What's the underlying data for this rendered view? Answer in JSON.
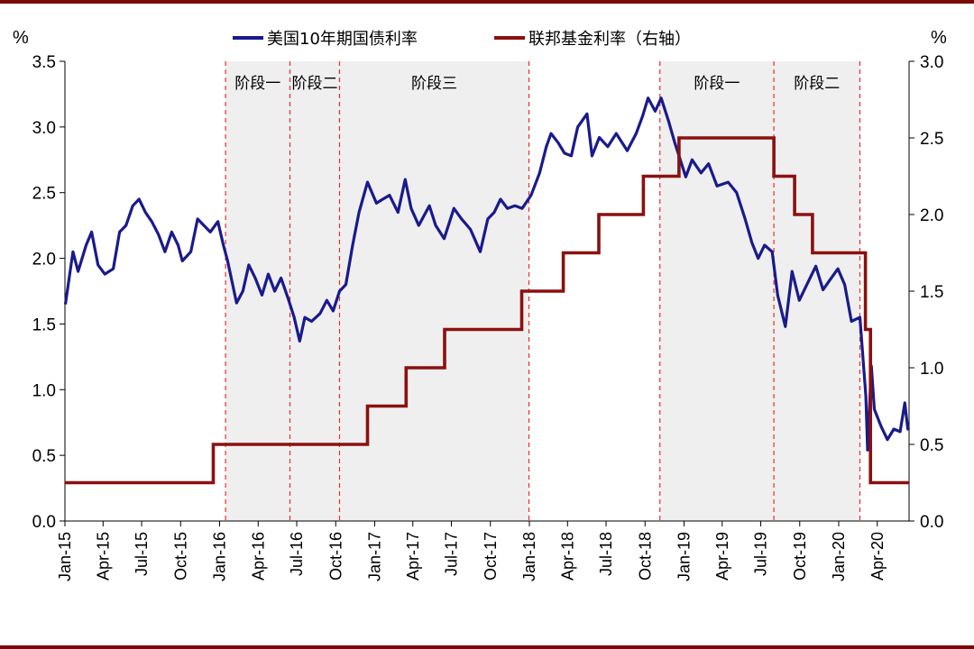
{
  "chart_data": {
    "type": "line",
    "left_axis": {
      "unit": "%",
      "ylim": [
        0,
        3.5
      ],
      "ticks": [
        "0.0",
        "0.5",
        "1.0",
        "1.5",
        "2.0",
        "2.5",
        "3.0",
        "3.5"
      ]
    },
    "right_axis": {
      "unit": "%",
      "ylim": [
        0,
        3.0
      ],
      "ticks": [
        "0.0",
        "0.5",
        "1.0",
        "1.5",
        "2.0",
        "2.5",
        "3.0"
      ]
    },
    "x_axis": {
      "range": [
        "2015-01-01",
        "2020-06-15"
      ],
      "ticks": [
        {
          "date": "2015-01-01",
          "label": "Jan-15"
        },
        {
          "date": "2015-04-01",
          "label": "Apr-15"
        },
        {
          "date": "2015-07-01",
          "label": "Jul-15"
        },
        {
          "date": "2015-10-01",
          "label": "Oct-15"
        },
        {
          "date": "2016-01-01",
          "label": "Jan-16"
        },
        {
          "date": "2016-04-01",
          "label": "Apr-16"
        },
        {
          "date": "2016-07-01",
          "label": "Jul-16"
        },
        {
          "date": "2016-10-01",
          "label": "Oct-16"
        },
        {
          "date": "2017-01-01",
          "label": "Jan-17"
        },
        {
          "date": "2017-04-01",
          "label": "Apr-17"
        },
        {
          "date": "2017-07-01",
          "label": "Jul-17"
        },
        {
          "date": "2017-10-01",
          "label": "Oct-17"
        },
        {
          "date": "2018-01-01",
          "label": "Jan-18"
        },
        {
          "date": "2018-04-01",
          "label": "Apr-18"
        },
        {
          "date": "2018-07-01",
          "label": "Jul-18"
        },
        {
          "date": "2018-10-01",
          "label": "Oct-18"
        },
        {
          "date": "2019-01-01",
          "label": "Jan-19"
        },
        {
          "date": "2019-04-01",
          "label": "Apr-19"
        },
        {
          "date": "2019-07-01",
          "label": "Jul-19"
        },
        {
          "date": "2019-10-01",
          "label": "Oct-19"
        },
        {
          "date": "2020-01-01",
          "label": "Jan-20"
        },
        {
          "date": "2020-04-01",
          "label": "Apr-20"
        }
      ]
    },
    "legend_placement": "top",
    "grid": false,
    "phases": [
      {
        "start": "2016-01-15",
        "end": "2016-06-15",
        "label": "阶段一"
      },
      {
        "start": "2016-06-15",
        "end": "2016-10-10",
        "label": "阶段二"
      },
      {
        "start": "2016-10-10",
        "end": "2017-12-31",
        "label": "阶段三"
      },
      {
        "start": "2018-11-05",
        "end": "2019-08-01",
        "label": "阶段一"
      },
      {
        "start": "2019-08-01",
        "end": "2020-02-20",
        "label": "阶段二"
      }
    ],
    "series": [
      {
        "name": "美国10年期国债利率",
        "axis": "left",
        "color": "#1a1a8c",
        "points": [
          [
            "2015-01-02",
            1.65
          ],
          [
            "2015-01-20",
            2.05
          ],
          [
            "2015-02-01",
            1.9
          ],
          [
            "2015-02-20",
            2.1
          ],
          [
            "2015-03-05",
            2.2
          ],
          [
            "2015-03-20",
            1.95
          ],
          [
            "2015-04-05",
            1.88
          ],
          [
            "2015-04-25",
            1.92
          ],
          [
            "2015-05-10",
            2.2
          ],
          [
            "2015-05-25",
            2.25
          ],
          [
            "2015-06-10",
            2.4
          ],
          [
            "2015-06-25",
            2.45
          ],
          [
            "2015-07-10",
            2.35
          ],
          [
            "2015-07-25",
            2.28
          ],
          [
            "2015-08-10",
            2.18
          ],
          [
            "2015-08-25",
            2.05
          ],
          [
            "2015-09-10",
            2.2
          ],
          [
            "2015-09-25",
            2.1
          ],
          [
            "2015-10-05",
            1.98
          ],
          [
            "2015-10-25",
            2.05
          ],
          [
            "2015-11-10",
            2.3
          ],
          [
            "2015-11-25",
            2.25
          ],
          [
            "2015-12-10",
            2.2
          ],
          [
            "2015-12-28",
            2.28
          ],
          [
            "2016-01-10",
            2.1
          ],
          [
            "2016-01-20",
            1.98
          ],
          [
            "2016-02-10",
            1.66
          ],
          [
            "2016-02-25",
            1.75
          ],
          [
            "2016-03-10",
            1.95
          ],
          [
            "2016-03-25",
            1.85
          ],
          [
            "2016-04-10",
            1.72
          ],
          [
            "2016-04-25",
            1.88
          ],
          [
            "2016-05-10",
            1.75
          ],
          [
            "2016-05-25",
            1.85
          ],
          [
            "2016-06-10",
            1.7
          ],
          [
            "2016-06-25",
            1.55
          ],
          [
            "2016-07-08",
            1.37
          ],
          [
            "2016-07-20",
            1.55
          ],
          [
            "2016-08-05",
            1.52
          ],
          [
            "2016-08-25",
            1.58
          ],
          [
            "2016-09-10",
            1.68
          ],
          [
            "2016-09-25",
            1.6
          ],
          [
            "2016-10-10",
            1.75
          ],
          [
            "2016-10-25",
            1.8
          ],
          [
            "2016-11-10",
            2.1
          ],
          [
            "2016-11-25",
            2.35
          ],
          [
            "2016-12-15",
            2.58
          ],
          [
            "2017-01-05",
            2.42
          ],
          [
            "2017-01-20",
            2.45
          ],
          [
            "2017-02-05",
            2.48
          ],
          [
            "2017-02-25",
            2.35
          ],
          [
            "2017-03-14",
            2.6
          ],
          [
            "2017-03-28",
            2.38
          ],
          [
            "2017-04-15",
            2.25
          ],
          [
            "2017-05-10",
            2.4
          ],
          [
            "2017-05-25",
            2.25
          ],
          [
            "2017-06-14",
            2.15
          ],
          [
            "2017-07-07",
            2.38
          ],
          [
            "2017-07-25",
            2.3
          ],
          [
            "2017-08-15",
            2.22
          ],
          [
            "2017-09-07",
            2.05
          ],
          [
            "2017-09-25",
            2.3
          ],
          [
            "2017-10-10",
            2.35
          ],
          [
            "2017-10-25",
            2.45
          ],
          [
            "2017-11-10",
            2.38
          ],
          [
            "2017-11-28",
            2.4
          ],
          [
            "2017-12-15",
            2.38
          ],
          [
            "2018-01-05",
            2.48
          ],
          [
            "2018-01-25",
            2.65
          ],
          [
            "2018-02-10",
            2.85
          ],
          [
            "2018-02-21",
            2.95
          ],
          [
            "2018-03-10",
            2.88
          ],
          [
            "2018-03-25",
            2.8
          ],
          [
            "2018-04-10",
            2.78
          ],
          [
            "2018-04-25",
            3.0
          ],
          [
            "2018-05-17",
            3.1
          ],
          [
            "2018-05-29",
            2.78
          ],
          [
            "2018-06-15",
            2.92
          ],
          [
            "2018-07-05",
            2.85
          ],
          [
            "2018-07-25",
            2.95
          ],
          [
            "2018-08-20",
            2.82
          ],
          [
            "2018-09-10",
            2.95
          ],
          [
            "2018-09-25",
            3.08
          ],
          [
            "2018-10-08",
            3.22
          ],
          [
            "2018-10-25",
            3.12
          ],
          [
            "2018-11-08",
            3.22
          ],
          [
            "2018-11-25",
            3.05
          ],
          [
            "2018-12-10",
            2.88
          ],
          [
            "2018-12-20",
            2.78
          ],
          [
            "2019-01-05",
            2.62
          ],
          [
            "2019-01-20",
            2.75
          ],
          [
            "2019-02-10",
            2.65
          ],
          [
            "2019-02-28",
            2.72
          ],
          [
            "2019-03-20",
            2.55
          ],
          [
            "2019-04-15",
            2.58
          ],
          [
            "2019-05-05",
            2.5
          ],
          [
            "2019-05-25",
            2.3
          ],
          [
            "2019-06-10",
            2.12
          ],
          [
            "2019-06-25",
            2.0
          ],
          [
            "2019-07-10",
            2.1
          ],
          [
            "2019-07-28",
            2.05
          ],
          [
            "2019-08-10",
            1.72
          ],
          [
            "2019-08-28",
            1.48
          ],
          [
            "2019-09-13",
            1.9
          ],
          [
            "2019-09-30",
            1.68
          ],
          [
            "2019-10-15",
            1.78
          ],
          [
            "2019-11-08",
            1.94
          ],
          [
            "2019-11-25",
            1.76
          ],
          [
            "2019-12-10",
            1.83
          ],
          [
            "2019-12-30",
            1.92
          ],
          [
            "2020-01-15",
            1.8
          ],
          [
            "2020-01-31",
            1.52
          ],
          [
            "2020-02-20",
            1.55
          ],
          [
            "2020-03-05",
            0.95
          ],
          [
            "2020-03-09",
            0.54
          ],
          [
            "2020-03-18",
            1.18
          ],
          [
            "2020-03-25",
            0.85
          ],
          [
            "2020-04-10",
            0.72
          ],
          [
            "2020-04-25",
            0.62
          ],
          [
            "2020-05-10",
            0.7
          ],
          [
            "2020-05-25",
            0.68
          ],
          [
            "2020-06-05",
            0.9
          ],
          [
            "2020-06-12",
            0.7
          ],
          [
            "2020-06-15",
            0.71
          ]
        ]
      },
      {
        "name": "联邦基金利率（右轴）",
        "axis": "right",
        "color": "#8b1010",
        "step_points": [
          [
            "2015-01-01",
            0.25
          ],
          [
            "2015-12-17",
            0.5
          ],
          [
            "2016-12-15",
            0.75
          ],
          [
            "2017-03-16",
            1.0
          ],
          [
            "2017-06-15",
            1.25
          ],
          [
            "2017-12-14",
            1.5
          ],
          [
            "2018-03-22",
            1.75
          ],
          [
            "2018-06-14",
            2.0
          ],
          [
            "2018-09-27",
            2.25
          ],
          [
            "2018-12-20",
            2.5
          ],
          [
            "2019-08-01",
            2.25
          ],
          [
            "2019-09-19",
            2.0
          ],
          [
            "2019-10-31",
            1.75
          ],
          [
            "2020-03-04",
            1.25
          ],
          [
            "2020-03-16",
            0.25
          ],
          [
            "2020-06-15",
            0.25
          ]
        ]
      }
    ]
  }
}
